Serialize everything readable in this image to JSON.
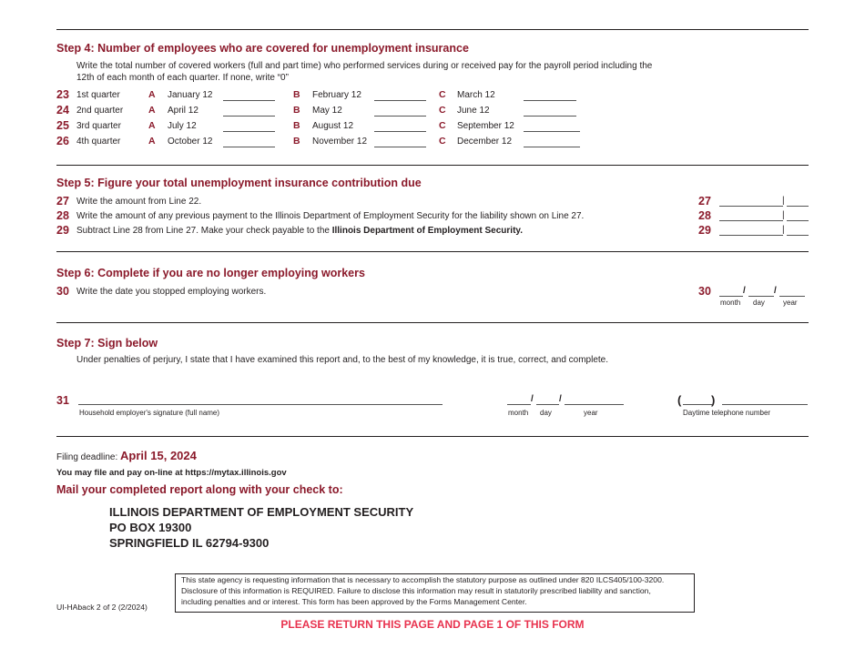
{
  "step4": {
    "title": "Step 4: Number of employees who are covered for unemployment insurance",
    "desc_line1": "Write the total number of covered workers (full and part time) who performed services during or received pay for the payroll period including the",
    "desc_line2": "12th of each month of each quarter. If none, write “0”",
    "rows": [
      {
        "num": "23",
        "label": "1st quarter",
        "a": "A",
        "a_month": "January 12",
        "b": "B",
        "b_month": "February 12",
        "c": "C",
        "c_month": "March 12"
      },
      {
        "num": "24",
        "label": "2nd quarter",
        "a": "A",
        "a_month": "April 12",
        "b": "B",
        "b_month": "May 12",
        "c": "C",
        "c_month": "June 12"
      },
      {
        "num": "25",
        "label": "3rd quarter",
        "a": "A",
        "a_month": "July 12",
        "b": "B",
        "b_month": "August 12",
        "c": "C",
        "c_month": "September 12"
      },
      {
        "num": "26",
        "label": "4th quarter",
        "a": "A",
        "a_month": "October 12",
        "b": "B",
        "b_month": "November 12",
        "c": "C",
        "c_month": "December 12"
      }
    ]
  },
  "step5": {
    "title": "Step 5: Figure your total unemployment insurance contribution due",
    "rows": [
      {
        "num": "27",
        "text": "Write the amount from Line 22.",
        "bold": ""
      },
      {
        "num": "28",
        "text": "Write the amount of any previous payment to the Illinois Department of Employment Security for the liability shown on Line 27.",
        "bold": ""
      },
      {
        "num": "29",
        "text": "Subtract Line 28 from Line 27.  Make your check payable to the ",
        "bold": "Illinois Department of Employment Security."
      }
    ]
  },
  "step6": {
    "title": "Step 6: Complete if you are no longer employing workers",
    "num": "30",
    "text": "Write the date you stopped employing workers.",
    "month": "month",
    "day": "day",
    "year": "year"
  },
  "step7": {
    "title": "Step 7: Sign below",
    "text": "Under penalties of perjury, I state that I have examined this report and, to the best of my knowledge, it is true, correct, and complete.",
    "num": "31",
    "signature_caption": "Household employer's signature (full name)",
    "month": "month",
    "day": "day",
    "year": "year",
    "phone_caption": "Daytime telephone number"
  },
  "footer": {
    "deadline_label": "Filing deadline: ",
    "deadline_date": "April 15, 2024",
    "online": "You may file and pay on-line at https://mytax.illinois.gov",
    "mail_heading": "Mail your completed report along with your check to:",
    "address": [
      "ILLINOIS DEPARTMENT OF EMPLOYMENT SECURITY",
      "PO BOX 19300",
      "SPRINGFIELD IL 62794-9300"
    ],
    "notice": [
      "This state agency is requesting information that is necessary to accomplish the statutory purpose as outlined under 820 ILCS405/100-3200.",
      "Disclosure of this information is REQUIRED.  Failure to disclose this information may result in statutorily prescribed liability and sanction,",
      "including penalties and or interest.  This form has been approved by the Forms Management Center."
    ],
    "form_id": "UI-HAback 2 of 2 (2/2024)",
    "return_notice": "PLEASE RETURN THIS PAGE AND PAGE 1 OF THIS FORM"
  },
  "colors": {
    "heading": "#8b1a2b",
    "return_notice": "#e8334f"
  }
}
